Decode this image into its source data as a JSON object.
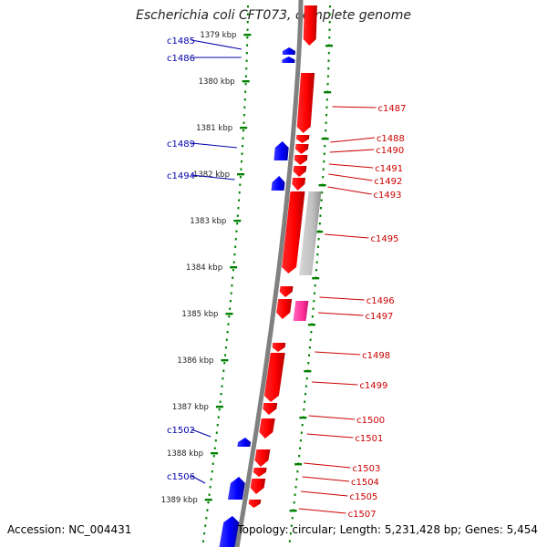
{
  "title": "Escherichia coli CFT073, complete genome",
  "accession": "Accession: NC_004431",
  "topology": "Topology: circular; Length: 5,231,428 bp; Genes: 5,454",
  "colors": {
    "forward_gene": "#0000ff",
    "reverse_gene": "#ff0000",
    "rna_gene": "#ff3399",
    "pseudo_gene": "#c0c0c0",
    "backbone": "#808080",
    "ticks": "#008000",
    "label_left": "#0000aa",
    "label_right": "#cc0000"
  },
  "ticks": [
    "1379 kbp",
    "1380 kbp",
    "1381 kbp",
    "1382 kbp",
    "1383 kbp",
    "1384 kbp",
    "1385 kbp",
    "1386 kbp",
    "1387 kbp",
    "1388 kbp",
    "1389 kbp"
  ],
  "left_labels": [
    "c1485",
    "c1486",
    "c1489",
    "c1494",
    "c1502",
    "c1506"
  ],
  "right_labels": [
    "c1487",
    "c1488",
    "c1490",
    "c1491",
    "c1492",
    "c1493",
    "c1495",
    "c1496",
    "c1497",
    "c1498",
    "c1499",
    "c1500",
    "c1501",
    "c1503",
    "c1504",
    "c1505",
    "c1507"
  ]
}
